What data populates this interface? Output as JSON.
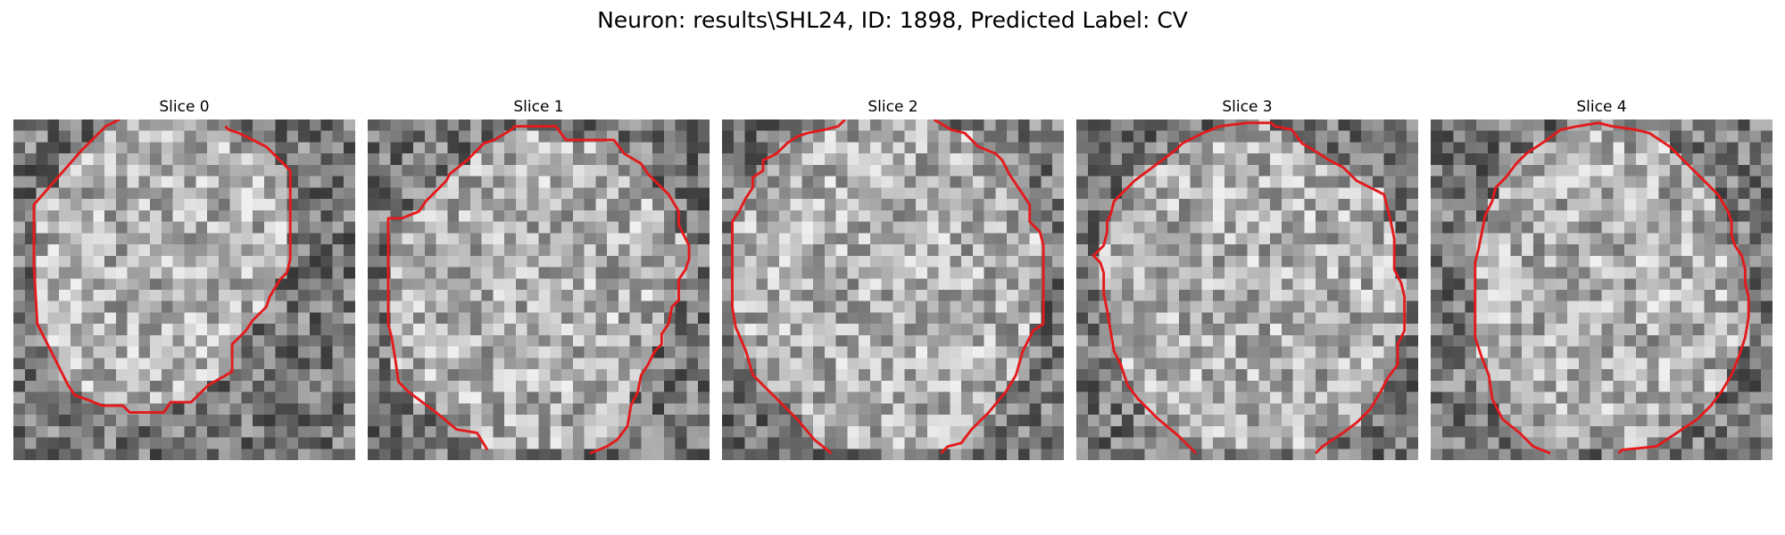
{
  "figure": {
    "title": "Neuron: results\\SHL24, ID: 1898, Predicted Label: CV"
  },
  "panels": [
    {
      "title": "Slice 0",
      "seed": 11,
      "contour": [
        [
          0.31,
          0.0
        ],
        [
          0.27,
          0.02
        ],
        [
          0.2,
          0.09
        ],
        [
          0.13,
          0.17
        ],
        [
          0.06,
          0.25
        ],
        [
          0.06,
          0.43
        ],
        [
          0.07,
          0.6
        ],
        [
          0.1,
          0.66
        ],
        [
          0.11,
          0.68
        ],
        [
          0.14,
          0.74
        ],
        [
          0.16,
          0.78
        ],
        [
          0.18,
          0.81
        ],
        [
          0.21,
          0.82
        ],
        [
          0.26,
          0.84
        ],
        [
          0.32,
          0.84
        ],
        [
          0.34,
          0.86
        ],
        [
          0.44,
          0.86
        ],
        [
          0.46,
          0.83
        ],
        [
          0.52,
          0.83
        ],
        [
          0.57,
          0.78
        ],
        [
          0.64,
          0.74
        ],
        [
          0.64,
          0.66
        ],
        [
          0.68,
          0.62
        ],
        [
          0.7,
          0.59
        ],
        [
          0.74,
          0.55
        ],
        [
          0.75,
          0.52
        ],
        [
          0.78,
          0.47
        ],
        [
          0.8,
          0.45
        ],
        [
          0.81,
          0.41
        ],
        [
          0.81,
          0.15
        ],
        [
          0.74,
          0.08
        ],
        [
          0.7,
          0.06
        ],
        [
          0.66,
          0.04
        ],
        [
          0.63,
          0.03
        ],
        [
          0.62,
          0.02
        ]
      ],
      "closed": false,
      "split": []
    },
    {
      "title": "Slice 1",
      "seed": 23,
      "contour": [
        [
          0.35,
          0.97
        ],
        [
          0.32,
          0.92
        ],
        [
          0.26,
          0.91
        ],
        [
          0.2,
          0.86
        ],
        [
          0.12,
          0.8
        ],
        [
          0.09,
          0.77
        ],
        [
          0.08,
          0.7
        ],
        [
          0.07,
          0.64
        ],
        [
          0.06,
          0.6
        ],
        [
          0.06,
          0.29
        ],
        [
          0.1,
          0.29
        ],
        [
          0.15,
          0.27
        ],
        [
          0.17,
          0.24
        ],
        [
          0.2,
          0.21
        ],
        [
          0.23,
          0.18
        ],
        [
          0.24,
          0.16
        ],
        [
          0.29,
          0.12
        ],
        [
          0.33,
          0.08
        ],
        [
          0.34,
          0.07
        ],
        [
          0.37,
          0.06
        ],
        [
          0.42,
          0.03
        ],
        [
          0.43,
          0.02
        ],
        [
          0.55,
          0.02
        ],
        [
          0.58,
          0.06
        ],
        [
          0.72,
          0.06
        ],
        [
          0.75,
          0.1
        ],
        [
          0.8,
          0.13
        ],
        [
          0.82,
          0.16
        ],
        [
          0.88,
          0.22
        ],
        [
          0.91,
          0.27
        ],
        [
          0.91,
          0.31
        ],
        [
          0.93,
          0.35
        ],
        [
          0.94,
          0.37
        ],
        [
          0.94,
          0.41
        ],
        [
          0.93,
          0.44
        ],
        [
          0.91,
          0.47
        ],
        [
          0.91,
          0.53
        ],
        [
          0.89,
          0.55
        ],
        [
          0.88,
          0.6
        ],
        [
          0.86,
          0.63
        ],
        [
          0.86,
          0.66
        ],
        [
          0.84,
          0.68
        ],
        [
          0.82,
          0.72
        ],
        [
          0.8,
          0.75
        ],
        [
          0.79,
          0.8
        ],
        [
          0.77,
          0.84
        ],
        [
          0.76,
          0.9
        ],
        [
          0.73,
          0.94
        ],
        [
          0.7,
          0.96
        ],
        [
          0.65,
          0.98
        ]
      ],
      "closed": false,
      "split": []
    },
    {
      "title": "Slice 2",
      "seed": 37,
      "contour": [
        [
          0.32,
          0.98
        ],
        [
          0.27,
          0.94
        ],
        [
          0.22,
          0.88
        ],
        [
          0.14,
          0.8
        ],
        [
          0.09,
          0.75
        ],
        [
          0.07,
          0.68
        ],
        [
          0.04,
          0.61
        ],
        [
          0.03,
          0.55
        ],
        [
          0.03,
          0.3
        ],
        [
          0.05,
          0.27
        ],
        [
          0.07,
          0.23
        ],
        [
          0.09,
          0.2
        ],
        [
          0.09,
          0.17
        ],
        [
          0.12,
          0.15
        ],
        [
          0.12,
          0.12
        ],
        [
          0.16,
          0.1
        ],
        [
          0.19,
          0.07
        ],
        [
          0.22,
          0.05
        ],
        [
          0.25,
          0.04
        ],
        [
          0.3,
          0.03
        ],
        [
          0.34,
          0.02
        ],
        [
          0.36,
          0.0
        ]
      ],
      "closed": false,
      "split": [
        [
          [
            0.62,
            0.0
          ],
          [
            0.67,
            0.03
          ],
          [
            0.71,
            0.04
          ],
          [
            0.75,
            0.08
          ],
          [
            0.8,
            0.1
          ],
          [
            0.82,
            0.12
          ],
          [
            0.84,
            0.16
          ],
          [
            0.86,
            0.19
          ],
          [
            0.88,
            0.22
          ],
          [
            0.9,
            0.25
          ],
          [
            0.9,
            0.3
          ],
          [
            0.93,
            0.33
          ],
          [
            0.94,
            0.37
          ],
          [
            0.94,
            0.6
          ],
          [
            0.91,
            0.62
          ],
          [
            0.88,
            0.68
          ],
          [
            0.86,
            0.75
          ],
          [
            0.83,
            0.8
          ],
          [
            0.78,
            0.86
          ],
          [
            0.73,
            0.91
          ],
          [
            0.7,
            0.95
          ],
          [
            0.66,
            0.96
          ],
          [
            0.64,
            0.98
          ]
        ]
      ]
    },
    {
      "title": "Slice 3",
      "seed": 53,
      "contour": [
        [
          0.35,
          0.98
        ],
        [
          0.3,
          0.93
        ],
        [
          0.24,
          0.88
        ],
        [
          0.18,
          0.82
        ],
        [
          0.15,
          0.78
        ],
        [
          0.13,
          0.72
        ],
        [
          0.11,
          0.68
        ],
        [
          0.1,
          0.62
        ],
        [
          0.09,
          0.56
        ],
        [
          0.08,
          0.51
        ],
        [
          0.08,
          0.45
        ],
        [
          0.07,
          0.42
        ],
        [
          0.05,
          0.4
        ],
        [
          0.08,
          0.37
        ],
        [
          0.09,
          0.33
        ],
        [
          0.09,
          0.3
        ],
        [
          0.1,
          0.28
        ],
        [
          0.11,
          0.24
        ],
        [
          0.14,
          0.21
        ],
        [
          0.17,
          0.18
        ],
        [
          0.21,
          0.15
        ],
        [
          0.25,
          0.12
        ],
        [
          0.29,
          0.09
        ],
        [
          0.31,
          0.07
        ],
        [
          0.33,
          0.06
        ],
        [
          0.37,
          0.04
        ],
        [
          0.42,
          0.02
        ],
        [
          0.5,
          0.01
        ],
        [
          0.57,
          0.01
        ],
        [
          0.58,
          0.02
        ],
        [
          0.63,
          0.03
        ],
        [
          0.66,
          0.07
        ],
        [
          0.71,
          0.1
        ],
        [
          0.74,
          0.12
        ],
        [
          0.78,
          0.14
        ],
        [
          0.82,
          0.18
        ],
        [
          0.86,
          0.2
        ],
        [
          0.9,
          0.22
        ],
        [
          0.91,
          0.26
        ],
        [
          0.92,
          0.3
        ],
        [
          0.93,
          0.35
        ],
        [
          0.93,
          0.44
        ],
        [
          0.95,
          0.48
        ],
        [
          0.96,
          0.52
        ],
        [
          0.96,
          0.62
        ],
        [
          0.94,
          0.66
        ],
        [
          0.94,
          0.72
        ],
        [
          0.91,
          0.76
        ],
        [
          0.89,
          0.8
        ],
        [
          0.86,
          0.85
        ],
        [
          0.82,
          0.89
        ],
        [
          0.78,
          0.92
        ],
        [
          0.72,
          0.96
        ],
        [
          0.7,
          0.98
        ]
      ],
      "closed": false,
      "split": []
    },
    {
      "title": "Slice 4",
      "seed": 71,
      "contour": [
        [
          0.35,
          0.98
        ],
        [
          0.3,
          0.96
        ],
        [
          0.26,
          0.92
        ],
        [
          0.21,
          0.88
        ],
        [
          0.18,
          0.82
        ],
        [
          0.17,
          0.75
        ],
        [
          0.15,
          0.7
        ],
        [
          0.13,
          0.64
        ],
        [
          0.13,
          0.42
        ],
        [
          0.14,
          0.38
        ],
        [
          0.15,
          0.33
        ],
        [
          0.16,
          0.28
        ],
        [
          0.18,
          0.24
        ],
        [
          0.19,
          0.2
        ],
        [
          0.22,
          0.17
        ],
        [
          0.25,
          0.13
        ],
        [
          0.28,
          0.1
        ],
        [
          0.31,
          0.08
        ],
        [
          0.34,
          0.06
        ],
        [
          0.38,
          0.03
        ],
        [
          0.43,
          0.02
        ],
        [
          0.49,
          0.01
        ],
        [
          0.53,
          0.02
        ],
        [
          0.6,
          0.03
        ],
        [
          0.64,
          0.04
        ],
        [
          0.67,
          0.06
        ],
        [
          0.7,
          0.08
        ],
        [
          0.72,
          0.1
        ],
        [
          0.76,
          0.14
        ],
        [
          0.8,
          0.18
        ],
        [
          0.84,
          0.22
        ],
        [
          0.87,
          0.27
        ],
        [
          0.88,
          0.3
        ],
        [
          0.88,
          0.34
        ],
        [
          0.89,
          0.37
        ],
        [
          0.91,
          0.4
        ],
        [
          0.92,
          0.44
        ],
        [
          0.92,
          0.48
        ],
        [
          0.93,
          0.52
        ],
        [
          0.93,
          0.58
        ],
        [
          0.92,
          0.64
        ],
        [
          0.9,
          0.7
        ],
        [
          0.88,
          0.75
        ],
        [
          0.85,
          0.8
        ],
        [
          0.82,
          0.84
        ],
        [
          0.78,
          0.88
        ],
        [
          0.72,
          0.92
        ],
        [
          0.66,
          0.96
        ],
        [
          0.56,
          0.97
        ],
        [
          0.55,
          0.98
        ]
      ],
      "closed": false,
      "split": []
    }
  ],
  "colors": {
    "contour": "#e31a1c"
  }
}
